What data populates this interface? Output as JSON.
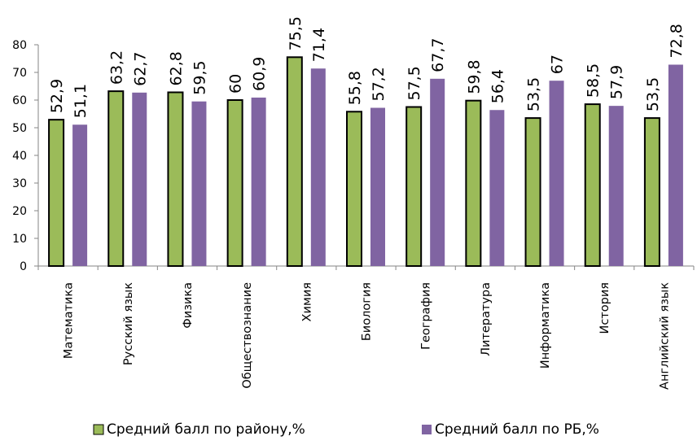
{
  "chart_data": {
    "type": "bar",
    "categories": [
      "Математика",
      "Русский язык",
      "Физика",
      "Обществознание",
      "Химия",
      "Биология",
      "География",
      "Литература",
      "Информатика",
      "История",
      "Английский язык"
    ],
    "series": [
      {
        "name": "Средний балл по району,%",
        "values": [
          52.9,
          63.2,
          62.8,
          60,
          75.5,
          55.8,
          57.5,
          59.8,
          53.5,
          58.5,
          53.5
        ],
        "labels": [
          "52,9",
          "63,2",
          "62,8",
          "60",
          "75,5",
          "55,8",
          "57,5",
          "59,8",
          "53,5",
          "58,5",
          "53,5"
        ],
        "color": "#9BBB59",
        "stroke": "#000000"
      },
      {
        "name": "Средний балл по РБ,%",
        "values": [
          51.1,
          62.7,
          59.5,
          60.9,
          71.4,
          57.2,
          67.7,
          56.4,
          67,
          57.9,
          72.8
        ],
        "labels": [
          "51,1",
          "62,7",
          "59,5",
          "60,9",
          "71,4",
          "57,2",
          "67,7",
          "56,4",
          "67",
          "57,9",
          "72,8"
        ],
        "color": "#8064A2",
        "stroke": "none"
      }
    ],
    "yticks": [
      0,
      10,
      20,
      30,
      40,
      50,
      60,
      70,
      80
    ],
    "ylim": [
      0,
      80
    ],
    "grid": false,
    "legend_position": "bottom"
  }
}
